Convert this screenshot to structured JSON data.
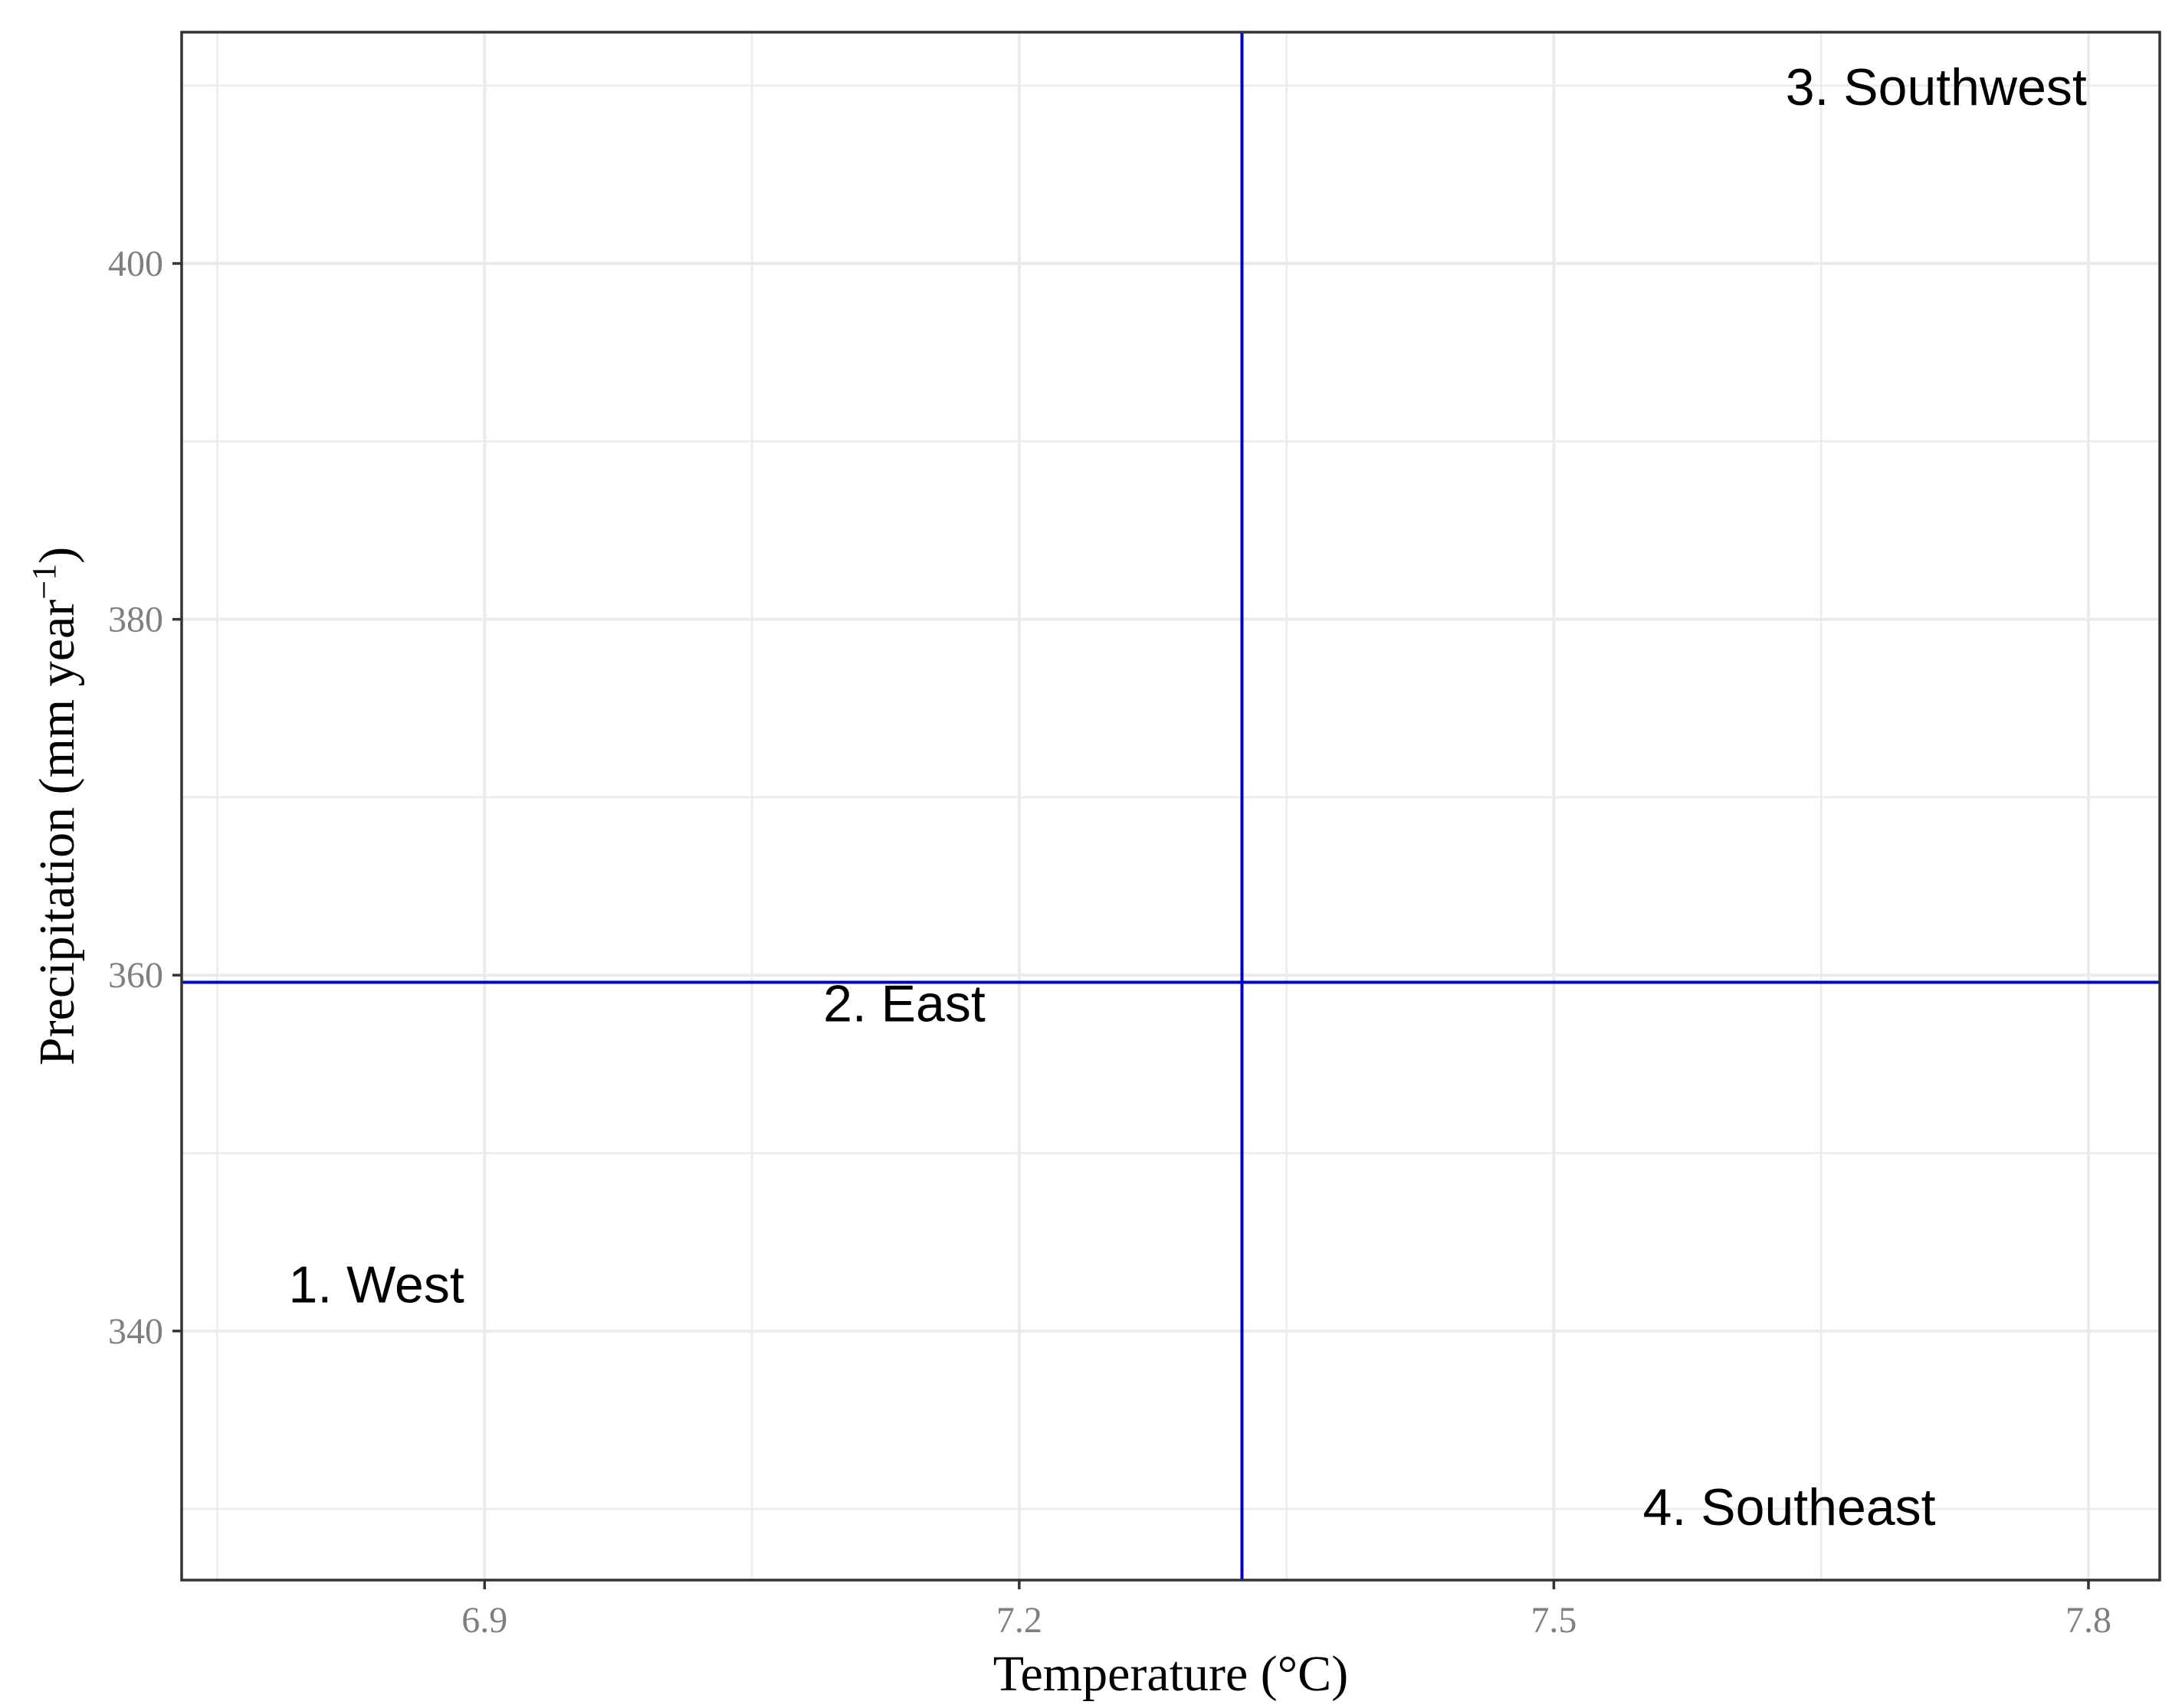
{
  "chart_data": {
    "type": "scatter",
    "xlabel": "Temperature (°C)",
    "ylabel": {
      "text": "Precipitation (mm year",
      "superscript": "−1",
      "suffix": ")"
    },
    "xlim": [
      6.73,
      7.84
    ],
    "ylim": [
      326,
      413
    ],
    "x_ticks": [
      6.9,
      7.2,
      7.5,
      7.8
    ],
    "x_tick_labels": [
      "6.9",
      "7.2",
      "7.5",
      "7.8"
    ],
    "y_ticks": [
      340,
      360,
      380,
      400
    ],
    "y_tick_labels": [
      "340",
      "360",
      "380",
      "400"
    ],
    "grid": true,
    "legend": "none",
    "reference_lines": {
      "vertical_x": 7.325,
      "horizontal_y": 359.6,
      "color": "#0000cc"
    },
    "labels": [
      {
        "text": "1. West",
        "x": 6.79,
        "y": 341.6
      },
      {
        "text": "2. East",
        "x": 7.09,
        "y": 357.4
      },
      {
        "text": "3. Southwest",
        "x": 7.63,
        "y": 408.9
      },
      {
        "text": "4. Southeast",
        "x": 7.55,
        "y": 329.1
      }
    ]
  },
  "colors": {
    "panel_border": "#333333",
    "grid": "#ebebeb",
    "tick_label": "#7f7f7f",
    "reference_line": "#0000cc"
  }
}
